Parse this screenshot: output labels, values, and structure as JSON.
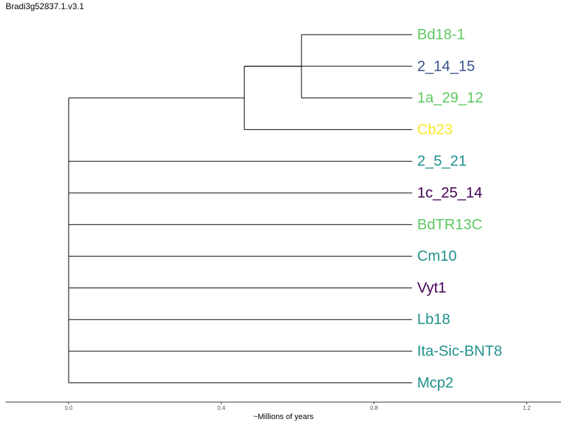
{
  "chart_data": {
    "type": "dendrogram",
    "title": "Bradi3g52837.1.v3.1",
    "xlabel": "~Millions of years",
    "xlim": [
      -0.165,
      1.29
    ],
    "xticks": [
      {
        "value": 0.0,
        "label": "0.0"
      },
      {
        "value": 0.4,
        "label": "0.4"
      },
      {
        "value": 0.8,
        "label": "0.8"
      },
      {
        "value": 1.2,
        "label": "1.2"
      }
    ],
    "tips": [
      {
        "name": "Bd18-1",
        "color": "#5ec962"
      },
      {
        "name": "2_14_15",
        "color": "#3b528b"
      },
      {
        "name": "1a_29_12",
        "color": "#5ec962"
      },
      {
        "name": "Cb23",
        "color": "#fde725"
      },
      {
        "name": "2_5_21",
        "color": "#21918c"
      },
      {
        "name": "1c_25_14",
        "color": "#440154"
      },
      {
        "name": "BdTR13C",
        "color": "#5ec962"
      },
      {
        "name": "Cm10",
        "color": "#21918c"
      },
      {
        "name": "Vyt1",
        "color": "#440154"
      },
      {
        "name": "Lb18",
        "color": "#21918c"
      },
      {
        "name": "Ita-Sic-BNT8",
        "color": "#21918c"
      },
      {
        "name": "Mcp2",
        "color": "#21918c"
      }
    ],
    "tip_x": 0.9,
    "nodes": [
      {
        "id": "root",
        "x": 0.0,
        "children": [
          "n1",
          "2_5_21",
          "1c_25_14",
          "BdTR13C",
          "Cm10",
          "Vyt1",
          "Lb18",
          "Ita-Sic-BNT8",
          "Mcp2"
        ]
      },
      {
        "id": "n1",
        "x": 0.46,
        "children": [
          "n2",
          "2_14_15",
          "Cb23"
        ]
      },
      {
        "id": "n2",
        "x": 0.61,
        "children": [
          "Bd18-1",
          "1a_29_12"
        ]
      }
    ]
  }
}
